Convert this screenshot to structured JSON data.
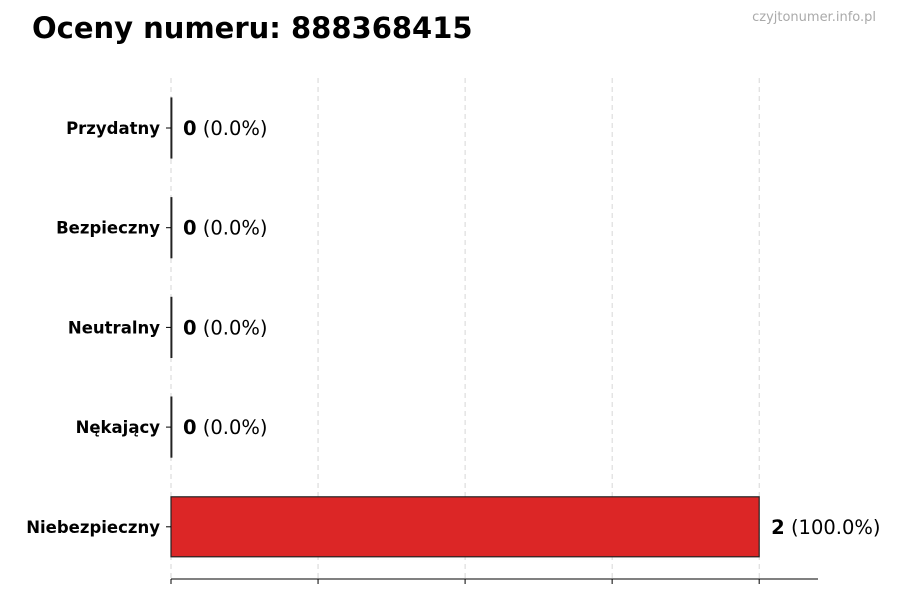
{
  "header": {
    "title": "Oceny numeru: 888368415",
    "watermark": "czyjtonumer.info.pl"
  },
  "chart_data": {
    "type": "bar",
    "orientation": "horizontal",
    "title": "Oceny numeru: 888368415",
    "categories": [
      "Przydatny",
      "Bezpieczny",
      "Neutralny",
      "Nękający",
      "Niebezpieczny"
    ],
    "values": [
      0,
      0,
      0,
      0,
      2
    ],
    "labels": [
      "(0.0%)",
      "(0.0%)",
      "(0.0%)",
      "(0.0%)",
      "(100.0%)"
    ],
    "xlim": [
      0,
      2.2
    ],
    "xticks": [
      0,
      0.5,
      1,
      1.5,
      2
    ],
    "xtick_labels_shown": false,
    "grid": "vertical-dashed",
    "colors": [
      "#dc2626",
      "#dc2626",
      "#dc2626",
      "#dc2626",
      "#dc2626"
    ]
  }
}
